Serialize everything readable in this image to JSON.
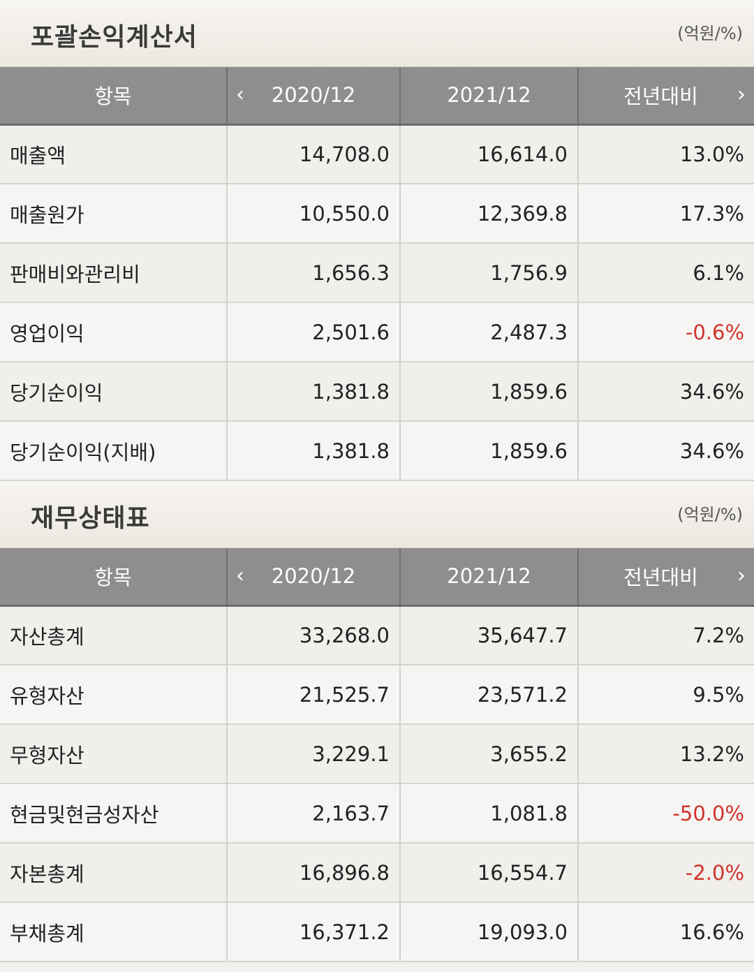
{
  "income_statement": {
    "title": "포괄손익계산서",
    "unit": "(억원/%)",
    "headers": {
      "item": "항목",
      "period1": "2020/12",
      "period2": "2021/12",
      "change": "전년대비"
    },
    "rows": [
      {
        "label": "매출액",
        "v1": "14,708.0",
        "v2": "16,614.0",
        "change": "13.0%",
        "negative": false
      },
      {
        "label": "매출원가",
        "v1": "10,550.0",
        "v2": "12,369.8",
        "change": "17.3%",
        "negative": false
      },
      {
        "label": "판매비와관리비",
        "v1": "1,656.3",
        "v2": "1,756.9",
        "change": "6.1%",
        "negative": false
      },
      {
        "label": "영업이익",
        "v1": "2,501.6",
        "v2": "2,487.3",
        "change": "-0.6%",
        "negative": true
      },
      {
        "label": "당기순이익",
        "v1": "1,381.8",
        "v2": "1,859.6",
        "change": "34.6%",
        "negative": false
      },
      {
        "label": "당기순이익(지배)",
        "v1": "1,381.8",
        "v2": "1,859.6",
        "change": "34.6%",
        "negative": false
      }
    ]
  },
  "balance_sheet": {
    "title": "재무상태표",
    "unit": "(억원/%)",
    "headers": {
      "item": "항목",
      "period1": "2020/12",
      "period2": "2021/12",
      "change": "전년대비"
    },
    "rows": [
      {
        "label": "자산총계",
        "v1": "33,268.0",
        "v2": "35,647.7",
        "change": "7.2%",
        "negative": false
      },
      {
        "label": "유형자산",
        "v1": "21,525.7",
        "v2": "23,571.2",
        "change": "9.5%",
        "negative": false
      },
      {
        "label": "무형자산",
        "v1": "3,229.1",
        "v2": "3,655.2",
        "change": "13.2%",
        "negative": false
      },
      {
        "label": "현금및현금성자산",
        "v1": "2,163.7",
        "v2": "1,081.8",
        "change": "-50.0%",
        "negative": true
      },
      {
        "label": "자본총계",
        "v1": "16,896.8",
        "v2": "16,554.7",
        "change": "-2.0%",
        "negative": true
      },
      {
        "label": "부채총계",
        "v1": "16,371.2",
        "v2": "19,093.0",
        "change": "16.6%",
        "negative": false
      }
    ]
  },
  "icons": {
    "prev": "chevron-left-icon",
    "next": "chevron-right-icon"
  },
  "colors": {
    "header_bg": "#8e8e8e",
    "negative": "#d0342c"
  }
}
